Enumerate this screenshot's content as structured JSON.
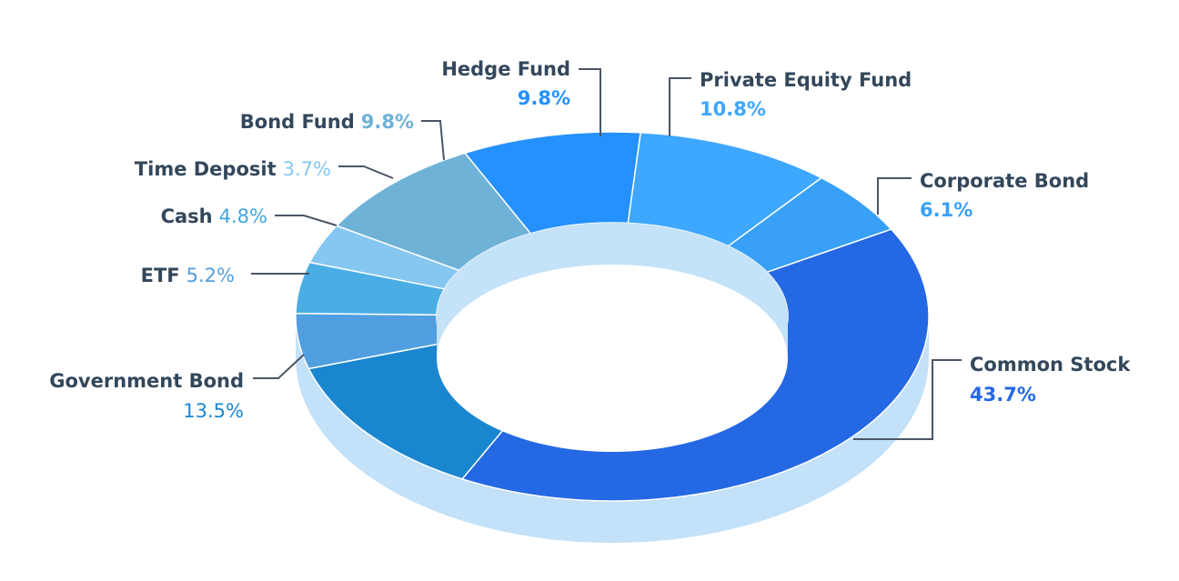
{
  "chart_data": {
    "type": "pie",
    "variant": "3d-donut",
    "title": "",
    "series": [
      {
        "name": "Common Stock",
        "label": "Common Stock",
        "value": 43.7,
        "value_label": "43.7%",
        "color": "#2468e4",
        "value_color": "#2468e4"
      },
      {
        "name": "Government Bond",
        "label": "Government Bond",
        "value": 13.5,
        "value_label": "13.5%",
        "color": "#1a86d0",
        "value_color": "#1a86d0"
      },
      {
        "name": "ETF",
        "label": "ETF",
        "value": 5.2,
        "value_label": "5.2%",
        "color": "#519fe0",
        "value_color": "#519fe0"
      },
      {
        "name": "Cash",
        "label": "Cash",
        "value": 4.8,
        "value_label": "4.8%",
        "color": "#4aaee5",
        "value_color": "#3fa6df"
      },
      {
        "name": "Time Deposit",
        "label": "Time Deposit",
        "value": 3.7,
        "value_label": "3.7%",
        "color": "#86c7f1",
        "value_color": "#86c7f1"
      },
      {
        "name": "Bond Fund",
        "label": "Bond Fund",
        "value": 9.8,
        "value_label": "9.8%",
        "color": "#6fb2d8",
        "value_color": "#6fb2d8"
      },
      {
        "name": "Hedge Fund",
        "label": "Hedge Fund",
        "value": 9.8,
        "value_label": "9.8%",
        "color": "#2591ff",
        "value_color": "#2591ff"
      },
      {
        "name": "Private Equity Fund",
        "label": "Private Equity Fund",
        "value": 10.8,
        "value_label": "10.8%",
        "color": "#3ea7ff",
        "value_color": "#3ea7ff"
      },
      {
        "name": "Corporate Bond",
        "label": "Corporate Bond",
        "value": 6.1,
        "value_label": "6.1%",
        "color": "#39a0f7",
        "value_color": "#39a0f7"
      }
    ],
    "colors": {
      "side": "#c3e1f8",
      "inner_wall": "#c4e2f8",
      "label_text": "#33475b",
      "leader_line": "#4a5566",
      "separator": "#ffffff"
    },
    "legend": "none"
  }
}
